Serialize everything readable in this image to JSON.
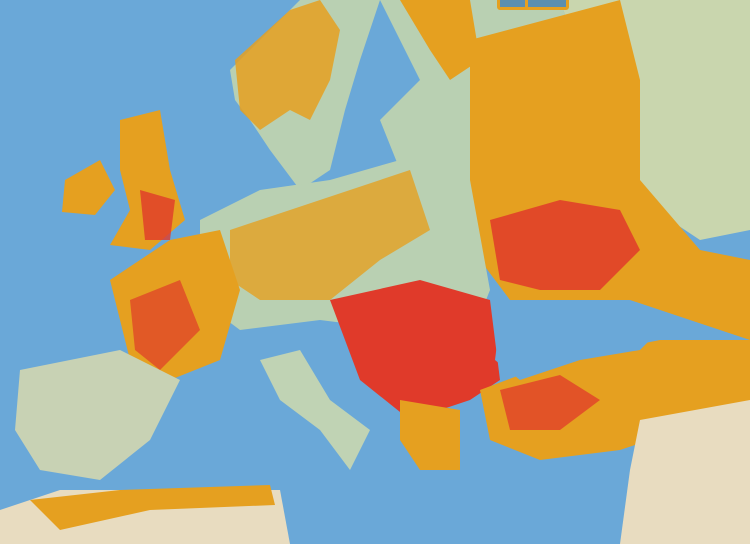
{
  "map": {
    "region": "Europe",
    "colors": {
      "sea": "#6aa8d8",
      "land": "#b9d0b2",
      "class_yellow": "#e8e23a",
      "class_orange": "#e5a020",
      "class_red": "#e03a2a",
      "desert": "#e8dcc0"
    }
  },
  "controls": [
    {
      "icon": "map-control-button"
    },
    {
      "icon": "map-control-button"
    }
  ]
}
